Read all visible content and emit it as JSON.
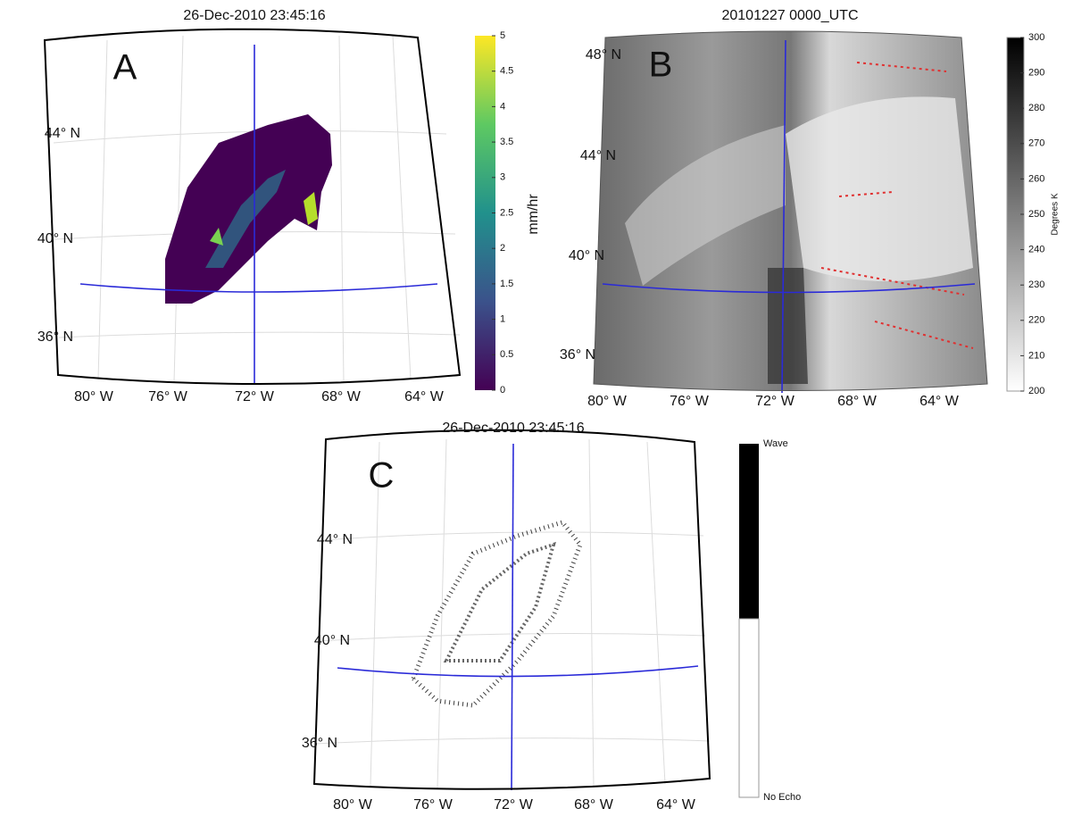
{
  "panels": [
    {
      "title": "26-Dec-2010 23:45:16",
      "letter": "A",
      "lat_labels": [
        "44° N",
        "40° N",
        "36° N"
      ],
      "lon_labels": [
        "80° W",
        "76° W",
        "72° W",
        "68° W",
        "64° W"
      ],
      "colorbar": {
        "ticks": [
          0,
          0.5,
          1,
          1.5,
          2,
          2.5,
          3,
          3.5,
          4,
          4.5,
          5
        ],
        "label": "mm/hr"
      }
    },
    {
      "title": "20101227 0000_UTC",
      "letter": "B",
      "lat_labels": [
        "48° N",
        "44° N",
        "40° N",
        "36° N"
      ],
      "lon_labels": [
        "80° W",
        "76° W",
        "72° W",
        "68° W",
        "64° W"
      ],
      "colorbar": {
        "ticks": [
          200,
          210,
          220,
          230,
          240,
          250,
          260,
          270,
          280,
          290,
          300
        ],
        "label": "Degrees K"
      }
    },
    {
      "title": "26-Dec-2010 23:45:16",
      "letter": "C",
      "lat_labels": [
        "44° N",
        "40° N",
        "36° N"
      ],
      "lon_labels": [
        "80° W",
        "76° W",
        "72° W",
        "68° W",
        "64° W"
      ],
      "colorbar": {
        "top_label": "Wave",
        "bottom_label": "No Echo"
      }
    }
  ]
}
